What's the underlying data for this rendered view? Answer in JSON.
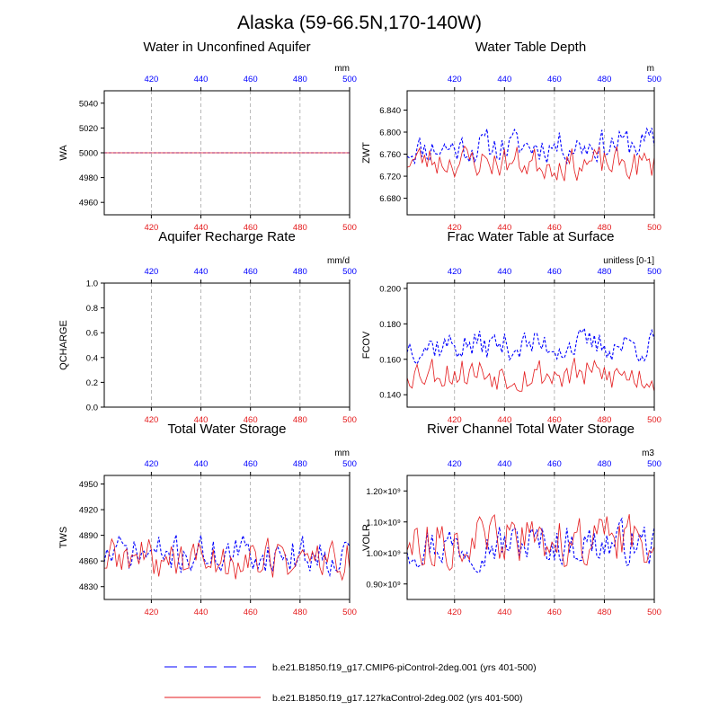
{
  "title": "Alaska (59-66.5N,170-140W)",
  "colors": {
    "red": "#e41a1c",
    "blue": "#0000ff",
    "grid": "#9a9a9a",
    "frame": "#000000"
  },
  "legend": [
    {
      "label": "b.e21.B1850.f19_g17.CMIP6-piControl-2deg.001 (yrs 401-500)",
      "color": "#0000ff",
      "style": "dashed"
    },
    {
      "label": "b.e21.B1850.f19_g17.127kaControl-2deg.002 (yrs 401-500)",
      "color": "#e41a1c",
      "style": "solid"
    }
  ],
  "chart_data": [
    {
      "type": "line",
      "title": "Water in Unconfined Aquifer",
      "units": "mm",
      "ylabel": "WA",
      "xlim": [
        401,
        500
      ],
      "xticks": [
        420,
        440,
        460,
        480,
        500
      ],
      "ylim": [
        4950,
        5050
      ],
      "yticks": [
        4960,
        4980,
        5000,
        5020,
        5040
      ],
      "ytick_labels": [
        "4960",
        "4980",
        "5000",
        "5020",
        "5040"
      ],
      "series": [
        {
          "name": "CMIP6-piControl",
          "style": "dashed",
          "constant": 5000
        },
        {
          "name": "127kaControl",
          "style": "solid",
          "constant": 5000
        }
      ]
    },
    {
      "type": "line",
      "title": "Water Table Depth",
      "units": "m",
      "ylabel": "ZWT",
      "xlim": [
        401,
        500
      ],
      "xticks": [
        420,
        440,
        460,
        480,
        500
      ],
      "ylim": [
        6.65,
        6.875
      ],
      "yticks": [
        6.68,
        6.72,
        6.76,
        6.8,
        6.84
      ],
      "ytick_labels": [
        "6.680",
        "6.720",
        "6.760",
        "6.800",
        "6.840"
      ],
      "series": [
        {
          "name": "CMIP6-piControl",
          "style": "dashed",
          "base": 6.775,
          "amp": 0.03,
          "trend": 0.01,
          "seed": 11
        },
        {
          "name": "127kaControl",
          "style": "solid",
          "base": 6.745,
          "amp": 0.03,
          "trend": -0.01,
          "seed": 23
        }
      ]
    },
    {
      "type": "line",
      "title": "Aquifer Recharge Rate",
      "units": "mm/d",
      "ylabel": "QCHARGE",
      "xlim": [
        401,
        500
      ],
      "xticks": [
        420,
        440,
        460,
        480,
        500
      ],
      "ylim": [
        0,
        1
      ],
      "yticks": [
        0,
        0.2,
        0.4,
        0.6,
        0.8,
        1
      ],
      "ytick_labels": [
        "0.0",
        "0.2",
        "0.4",
        "0.6",
        "0.8",
        "1.0"
      ],
      "series": [
        {
          "name": "CMIP6-piControl",
          "style": "dashed",
          "constant": 0
        },
        {
          "name": "127kaControl",
          "style": "solid",
          "constant": 0
        }
      ]
    },
    {
      "type": "line",
      "title": "Frac Water Table at Surface",
      "units": "unitless [0-1]",
      "ylabel": "FCOV",
      "xlim": [
        401,
        500
      ],
      "xticks": [
        420,
        440,
        460,
        480,
        500
      ],
      "ylim": [
        0.133,
        0.203
      ],
      "yticks": [
        0.14,
        0.16,
        0.18,
        0.2
      ],
      "ytick_labels": [
        "0.140",
        "0.160",
        "0.180",
        "0.200"
      ],
      "series": [
        {
          "name": "CMIP6-piControl",
          "style": "dashed",
          "base": 0.168,
          "amp": 0.009,
          "trend": 0.0,
          "seed": 37
        },
        {
          "name": "127kaControl",
          "style": "solid",
          "base": 0.152,
          "amp": 0.01,
          "trend": -0.004,
          "seed": 53
        }
      ]
    },
    {
      "type": "line",
      "title": "Total Water Storage",
      "units": "mm",
      "ylabel": "TWS",
      "xlim": [
        401,
        500
      ],
      "xticks": [
        420,
        440,
        460,
        480,
        500
      ],
      "ylim": [
        4815,
        4960
      ],
      "yticks": [
        4830,
        4860,
        4890,
        4920,
        4950
      ],
      "ytick_labels": [
        "4830",
        "4860",
        "4890",
        "4920",
        "4950"
      ],
      "series": [
        {
          "name": "CMIP6-piControl",
          "style": "dashed",
          "base": 4868,
          "amp": 22,
          "trend": 0,
          "seed": 71
        },
        {
          "name": "127kaControl",
          "style": "solid",
          "base": 4862,
          "amp": 25,
          "trend": 0,
          "seed": 89
        }
      ]
    },
    {
      "type": "line",
      "title": "River Channel Total Water Storage",
      "units": "m3",
      "ylabel": "VOLR",
      "xlim": [
        401,
        500
      ],
      "xticks": [
        420,
        440,
        460,
        480,
        500
      ],
      "ylim": [
        0.85,
        1.25
      ],
      "yticks": [
        0.9,
        1.0,
        1.1,
        1.2
      ],
      "ytick_labels": [
        "0.90×10⁹",
        "1.00×10⁹",
        "1.10×10⁹",
        "1.20×10⁹"
      ],
      "series": [
        {
          "name": "CMIP6-piControl",
          "style": "dashed",
          "base": 1.03,
          "amp": 0.07,
          "trend": 0,
          "seed": 97
        },
        {
          "name": "127kaControl",
          "style": "solid",
          "base": 1.04,
          "amp": 0.08,
          "trend": 0,
          "seed": 113
        }
      ]
    }
  ]
}
